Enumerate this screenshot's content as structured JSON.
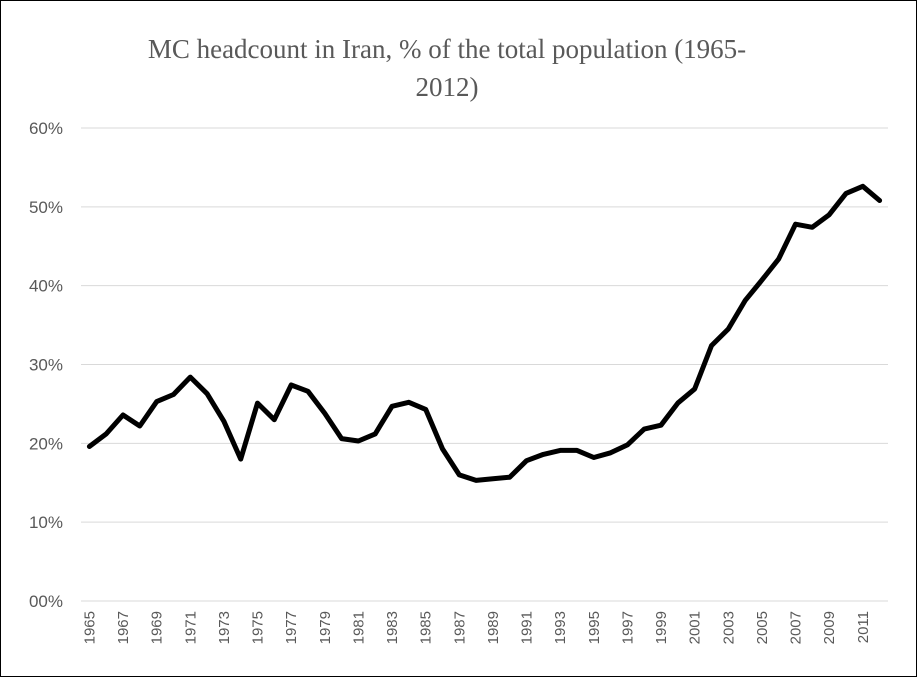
{
  "chart_data": {
    "type": "line",
    "title_lines": [
      "MC headcount in Iran, % of the total population (1965-",
      "2012)"
    ],
    "xlabel": "",
    "ylabel": "",
    "ylim": [
      0,
      60
    ],
    "yticks": [
      0,
      10,
      20,
      30,
      40,
      50,
      60
    ],
    "ytick_labels": [
      "00%",
      "10%",
      "20%",
      "30%",
      "40%",
      "50%",
      "60%"
    ],
    "x_tick_labels": [
      "1965",
      "1967",
      "1969",
      "1971",
      "1973",
      "1975",
      "1977",
      "1979",
      "1981",
      "1983",
      "1985",
      "1987",
      "1989",
      "1991",
      "1993",
      "1995",
      "1997",
      "1999",
      "2001",
      "2003",
      "2005",
      "2007",
      "2009",
      "2011"
    ],
    "grid": true,
    "legend": "none",
    "colors": {
      "line": "#000000",
      "grid": "#d9d9d9",
      "text": "#595959"
    },
    "series": [
      {
        "x": [
          1965,
          1966,
          1967,
          1968,
          1969,
          1970,
          1971,
          1972,
          1973,
          1974,
          1975,
          1976,
          1977,
          1978,
          1979,
          1980,
          1981,
          1982,
          1983,
          1984,
          1985,
          1986,
          1987,
          1988,
          1989,
          1990,
          1991,
          1992,
          1993,
          1994,
          1995,
          1996,
          1997,
          1998,
          1999,
          2000,
          2001,
          2002,
          2003,
          2004,
          2005,
          2006,
          2007,
          2008,
          2009,
          2010,
          2011,
          2012
        ],
        "values": [
          19.6,
          21.2,
          23.6,
          22.2,
          25.3,
          26.2,
          28.4,
          26.3,
          22.8,
          18.0,
          25.1,
          23.0,
          27.4,
          26.6,
          23.8,
          20.6,
          20.3,
          21.2,
          24.7,
          25.2,
          24.3,
          19.3,
          16.0,
          15.3,
          15.5,
          15.7,
          17.8,
          18.6,
          19.1,
          19.1,
          18.2,
          18.8,
          19.8,
          21.8,
          22.3,
          25.1,
          26.9,
          32.4,
          34.5,
          38.1,
          40.7,
          43.4,
          47.8,
          47.4,
          49.0,
          51.7,
          52.6,
          50.8
        ]
      }
    ]
  }
}
